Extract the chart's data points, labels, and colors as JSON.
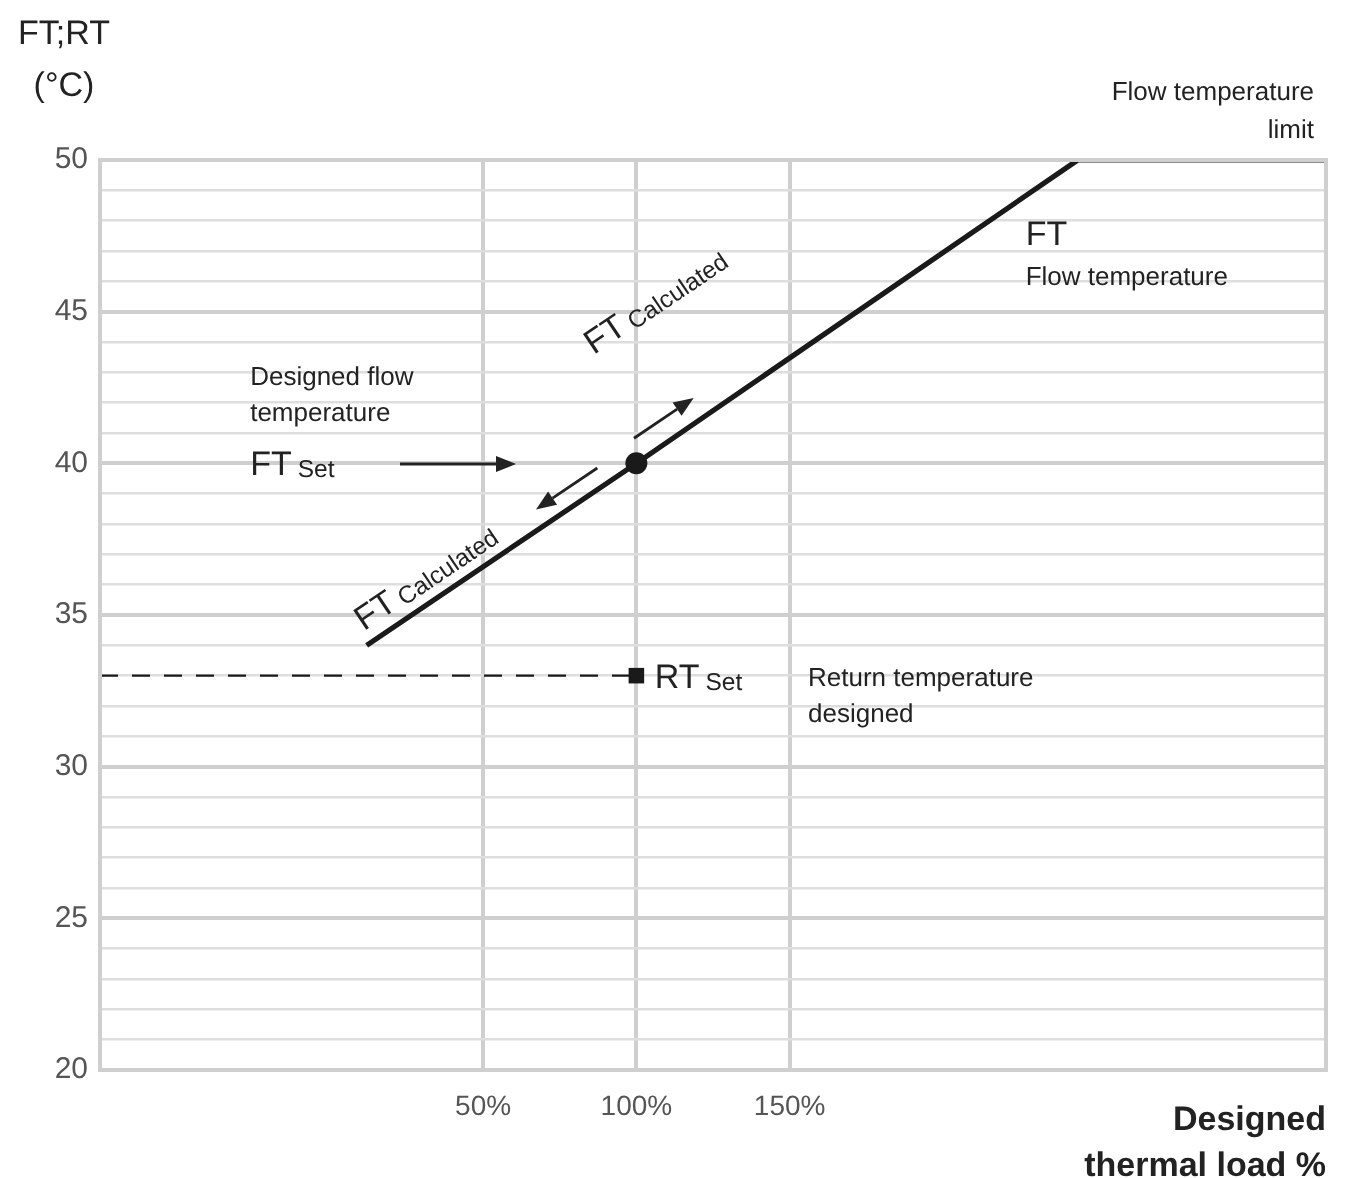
{
  "chart_data": {
    "type": "line",
    "xlabel": "Designed\nthermal load %",
    "ylabel": "FT;RT\n(°C)",
    "xlim": [
      -75,
      325
    ],
    "xticks": [
      {
        "value": 50,
        "label": "50%"
      },
      {
        "value": 100,
        "label": "100%"
      },
      {
        "value": 150,
        "label": "150%"
      }
    ],
    "ylim": [
      20,
      50
    ],
    "yticks": [
      20,
      {
        "value": 21,
        "label": null
      },
      {
        "value": 22,
        "label": null
      },
      {
        "value": 23,
        "label": null
      },
      {
        "value": 24,
        "label": null
      },
      25,
      {
        "value": 26,
        "label": null
      },
      {
        "value": 27,
        "label": null
      },
      {
        "value": 28,
        "label": null
      },
      {
        "value": 29,
        "label": null
      },
      30,
      {
        "value": 31,
        "label": null
      },
      {
        "value": 32,
        "label": null
      },
      {
        "value": 33,
        "label": null
      },
      {
        "value": 34,
        "label": null
      },
      35,
      {
        "value": 36,
        "label": null
      },
      {
        "value": 37,
        "label": null
      },
      {
        "value": 38,
        "label": null
      },
      {
        "value": 39,
        "label": null
      },
      40,
      {
        "value": 41,
        "label": null
      },
      {
        "value": 42,
        "label": null
      },
      {
        "value": 43,
        "label": null
      },
      {
        "value": 44,
        "label": null
      },
      45,
      {
        "value": 46,
        "label": null
      },
      {
        "value": 47,
        "label": null
      },
      {
        "value": 48,
        "label": null
      },
      {
        "value": 49,
        "label": null
      },
      50
    ],
    "grid": true,
    "series": [
      {
        "x": [
          12,
          100,
          244,
          325
        ],
        "values": [
          34,
          40,
          50,
          50
        ],
        "color": "#1a1a1a",
        "marker": "none",
        "line_style": "solid"
      },
      {
        "type": "scatter",
        "x": [
          100
        ],
        "values": [
          40
        ],
        "color": "#1a1a1a",
        "marker": "circle"
      },
      {
        "type": "line",
        "x": [
          -75,
          100
        ],
        "values": [
          33,
          33
        ],
        "color": "#1a1a1a",
        "marker": "none",
        "line_style": "dashed"
      },
      {
        "type": "scatter",
        "x": [
          100
        ],
        "values": [
          33
        ],
        "color": "#1a1a1a",
        "marker": "square"
      }
    ],
    "annotations": [
      "Flow temperature\nlimit",
      "FT",
      "Flow temperature",
      "FT$_{Calculated}$",
      "FT$_{Calculated}$",
      "Designed flow\ntemperature",
      "FT$_{Set}$",
      "RT$_{Set}$",
      "Return temperature\ndesigned"
    ]
  }
}
